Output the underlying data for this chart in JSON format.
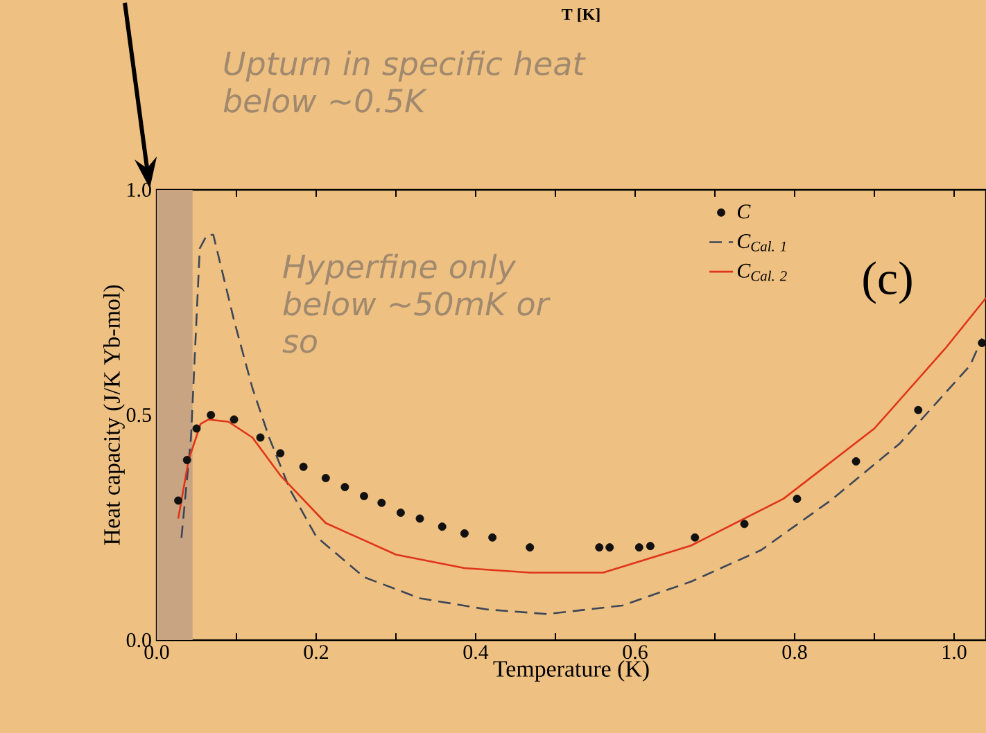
{
  "chart_data": {
    "type": "line",
    "xlabel": "Temperature (K)",
    "ylabel": "Heat capacity (J/K Yb-mol)",
    "xlim": [
      0,
      1.04
    ],
    "ylim": [
      0,
      1.0
    ],
    "xticks": [
      {
        "value": 0,
        "label": "0.0"
      },
      {
        "value": 0.1,
        "label": null
      },
      {
        "value": 0.2,
        "label": "0.2"
      },
      {
        "value": 0.3,
        "label": null
      },
      {
        "value": 0.4,
        "label": "0.4"
      },
      {
        "value": 0.5,
        "label": null
      },
      {
        "value": 0.6,
        "label": "0.6"
      },
      {
        "value": 0.7,
        "label": null
      },
      {
        "value": 0.8,
        "label": "0.8"
      },
      {
        "value": 0.9,
        "label": null
      },
      {
        "value": 1.0,
        "label": "1.0"
      }
    ],
    "yticks": [
      {
        "value": 0,
        "label": "0.0"
      },
      {
        "value": 0.25,
        "label": null
      },
      {
        "value": 0.5,
        "label": "0.5"
      },
      {
        "value": 0.75,
        "label": null
      },
      {
        "value": 1.0,
        "label": "1.0"
      }
    ],
    "legend": "top right",
    "series": [
      {
        "name": "C",
        "type": "scatter",
        "marker": "circle",
        "color": "#111111",
        "x": [
          0.027,
          0.038,
          0.05,
          0.068,
          0.097,
          0.13,
          0.155,
          0.184,
          0.212,
          0.236,
          0.26,
          0.282,
          0.306,
          0.33,
          0.358,
          0.386,
          0.421,
          0.468,
          0.555,
          0.568,
          0.605,
          0.619,
          0.675,
          0.737,
          0.803,
          0.877,
          0.955,
          1.035
        ],
        "values": [
          0.31,
          0.4,
          0.47,
          0.5,
          0.49,
          0.45,
          0.415,
          0.385,
          0.36,
          0.34,
          0.32,
          0.305,
          0.283,
          0.27,
          0.252,
          0.237,
          0.228,
          0.206,
          0.206,
          0.206,
          0.206,
          0.209,
          0.228,
          0.258,
          0.314,
          0.397,
          0.511,
          0.66
        ]
      },
      {
        "name": "C$_{Cal. 1}$",
        "line_style": "dashed",
        "color": "#3c4658",
        "x": [
          0.031,
          0.043,
          0.054,
          0.063,
          0.071,
          0.097,
          0.12,
          0.141,
          0.167,
          0.2,
          0.26,
          0.33,
          0.415,
          0.49,
          0.584,
          0.67,
          0.758,
          0.845,
          0.932,
          1.02,
          1.035
        ],
        "values": [
          0.227,
          0.45,
          0.87,
          0.9,
          0.9,
          0.71,
          0.56,
          0.45,
          0.335,
          0.23,
          0.14,
          0.093,
          0.068,
          0.058,
          0.077,
          0.13,
          0.2,
          0.31,
          0.437,
          0.61,
          0.67
        ]
      },
      {
        "name": "C$_{Cal. 2}$",
        "line_style": "solid",
        "color": "#e03418",
        "x": [
          0.027,
          0.04,
          0.055,
          0.065,
          0.09,
          0.12,
          0.155,
          0.212,
          0.3,
          0.386,
          0.468,
          0.56,
          0.67,
          0.786,
          0.9,
          0.99,
          1.04
        ],
        "values": [
          0.27,
          0.4,
          0.48,
          0.49,
          0.485,
          0.45,
          0.366,
          0.26,
          0.19,
          0.16,
          0.15,
          0.15,
          0.21,
          0.314,
          0.47,
          0.65,
          0.76
        ]
      }
    ],
    "bands": [
      {
        "axis": "x",
        "from": 0,
        "to": 0.045,
        "color": "#c8a482"
      }
    ],
    "annotations": [
      "T [K]",
      "Upturn in specific heat below ~0.5K",
      "Hyperfine only below ~50mK or so",
      "(c)"
    ]
  }
}
